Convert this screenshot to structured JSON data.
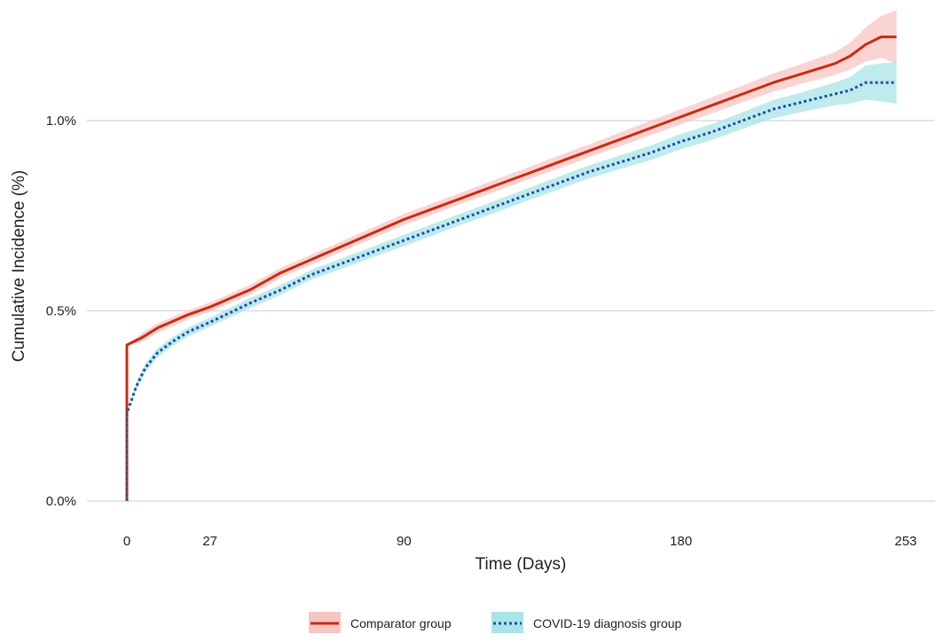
{
  "chart_data": {
    "type": "line",
    "xlabel": "Time (Days)",
    "ylabel": "Cumulative Incidence (%)",
    "xlim": [
      0,
      253
    ],
    "ylim": [
      0,
      1.22
    ],
    "x_ticks": [
      0,
      27,
      90,
      180,
      253
    ],
    "y_ticks": [
      0,
      0.5,
      1.0
    ],
    "y_tick_labels": [
      "0.0%",
      "0.5%",
      "1.0%"
    ],
    "grid": "horizontal",
    "legend": "bottom",
    "series": [
      {
        "name": "Comparator group",
        "color": "#cc2a10",
        "band_color": "#f7c6c3",
        "line_style": "solid",
        "points": [
          [
            0,
            0
          ],
          [
            0,
            0.41
          ],
          [
            5,
            0.43
          ],
          [
            10,
            0.455
          ],
          [
            20,
            0.49
          ],
          [
            27,
            0.51
          ],
          [
            40,
            0.555
          ],
          [
            50,
            0.6
          ],
          [
            60,
            0.635
          ],
          [
            70,
            0.67
          ],
          [
            80,
            0.705
          ],
          [
            90,
            0.74
          ],
          [
            100,
            0.77
          ],
          [
            110,
            0.8
          ],
          [
            120,
            0.83
          ],
          [
            130,
            0.86
          ],
          [
            140,
            0.89
          ],
          [
            150,
            0.92
          ],
          [
            160,
            0.95
          ],
          [
            170,
            0.98
          ],
          [
            180,
            1.01
          ],
          [
            190,
            1.04
          ],
          [
            200,
            1.07
          ],
          [
            210,
            1.1
          ],
          [
            220,
            1.125
          ],
          [
            230,
            1.15
          ],
          [
            235,
            1.17
          ],
          [
            240,
            1.2
          ],
          [
            245,
            1.22
          ],
          [
            250,
            1.22
          ]
        ],
        "band_halfwidth": [
          0,
          0,
          0.012,
          0.012,
          0.012,
          0.012,
          0.013,
          0.013,
          0.013,
          0.014,
          0.014,
          0.015,
          0.015,
          0.015,
          0.016,
          0.016,
          0.017,
          0.017,
          0.018,
          0.019,
          0.02,
          0.021,
          0.022,
          0.024,
          0.026,
          0.03,
          0.035,
          0.045,
          0.055,
          0.07
        ]
      },
      {
        "name": "COVID-19 diagnosis group",
        "color": "#1e4ea8",
        "band_color": "#a9e4e6",
        "line_style": "dotted",
        "points": [
          [
            0,
            0
          ],
          [
            0,
            0.23
          ],
          [
            3,
            0.3
          ],
          [
            6,
            0.35
          ],
          [
            10,
            0.39
          ],
          [
            15,
            0.42
          ],
          [
            20,
            0.445
          ],
          [
            27,
            0.47
          ],
          [
            40,
            0.52
          ],
          [
            50,
            0.555
          ],
          [
            60,
            0.595
          ],
          [
            70,
            0.625
          ],
          [
            80,
            0.655
          ],
          [
            90,
            0.685
          ],
          [
            100,
            0.715
          ],
          [
            110,
            0.745
          ],
          [
            120,
            0.775
          ],
          [
            130,
            0.805
          ],
          [
            140,
            0.835
          ],
          [
            150,
            0.865
          ],
          [
            160,
            0.89
          ],
          [
            170,
            0.915
          ],
          [
            180,
            0.945
          ],
          [
            190,
            0.97
          ],
          [
            200,
            1.0
          ],
          [
            210,
            1.03
          ],
          [
            220,
            1.05
          ],
          [
            230,
            1.07
          ],
          [
            235,
            1.08
          ],
          [
            240,
            1.1
          ],
          [
            250,
            1.1
          ]
        ],
        "band_halfwidth": [
          0,
          0,
          0.01,
          0.012,
          0.012,
          0.012,
          0.012,
          0.012,
          0.013,
          0.013,
          0.013,
          0.014,
          0.014,
          0.015,
          0.015,
          0.015,
          0.016,
          0.016,
          0.017,
          0.017,
          0.018,
          0.019,
          0.02,
          0.021,
          0.022,
          0.024,
          0.026,
          0.03,
          0.035,
          0.045,
          0.055
        ]
      }
    ]
  }
}
